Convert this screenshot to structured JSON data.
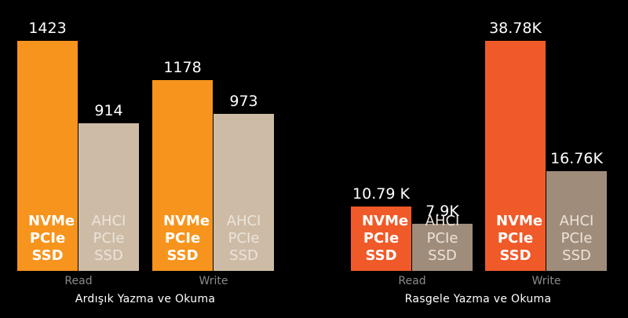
{
  "charts": [
    {
      "type": "bar",
      "title": "Ardışık Yazma ve Okuma",
      "categories": [
        "Read",
        "Write"
      ],
      "series": [
        {
          "name": "NVMe PCIe SSD",
          "color": "#f7941d",
          "values": [
            1423,
            1178
          ]
        },
        {
          "name": "AHCI PCIe SSD",
          "color": "#cdbba6",
          "values": [
            914,
            973
          ]
        }
      ]
    },
    {
      "type": "bar",
      "title": "Rasgele Yazma ve Okuma",
      "categories": [
        "Read",
        "Write"
      ],
      "series": [
        {
          "name": "NVMe PCIe SSD",
          "color": "#f05a28",
          "values": [
            10790,
            38780
          ],
          "value_labels": [
            "10.79 K",
            "38.78K"
          ]
        },
        {
          "name": "AHCI PCIe SSD",
          "color": "#a08c7a",
          "values": [
            7900,
            16760
          ],
          "value_labels": [
            "7.9K",
            "16.76K"
          ]
        }
      ]
    }
  ]
}
